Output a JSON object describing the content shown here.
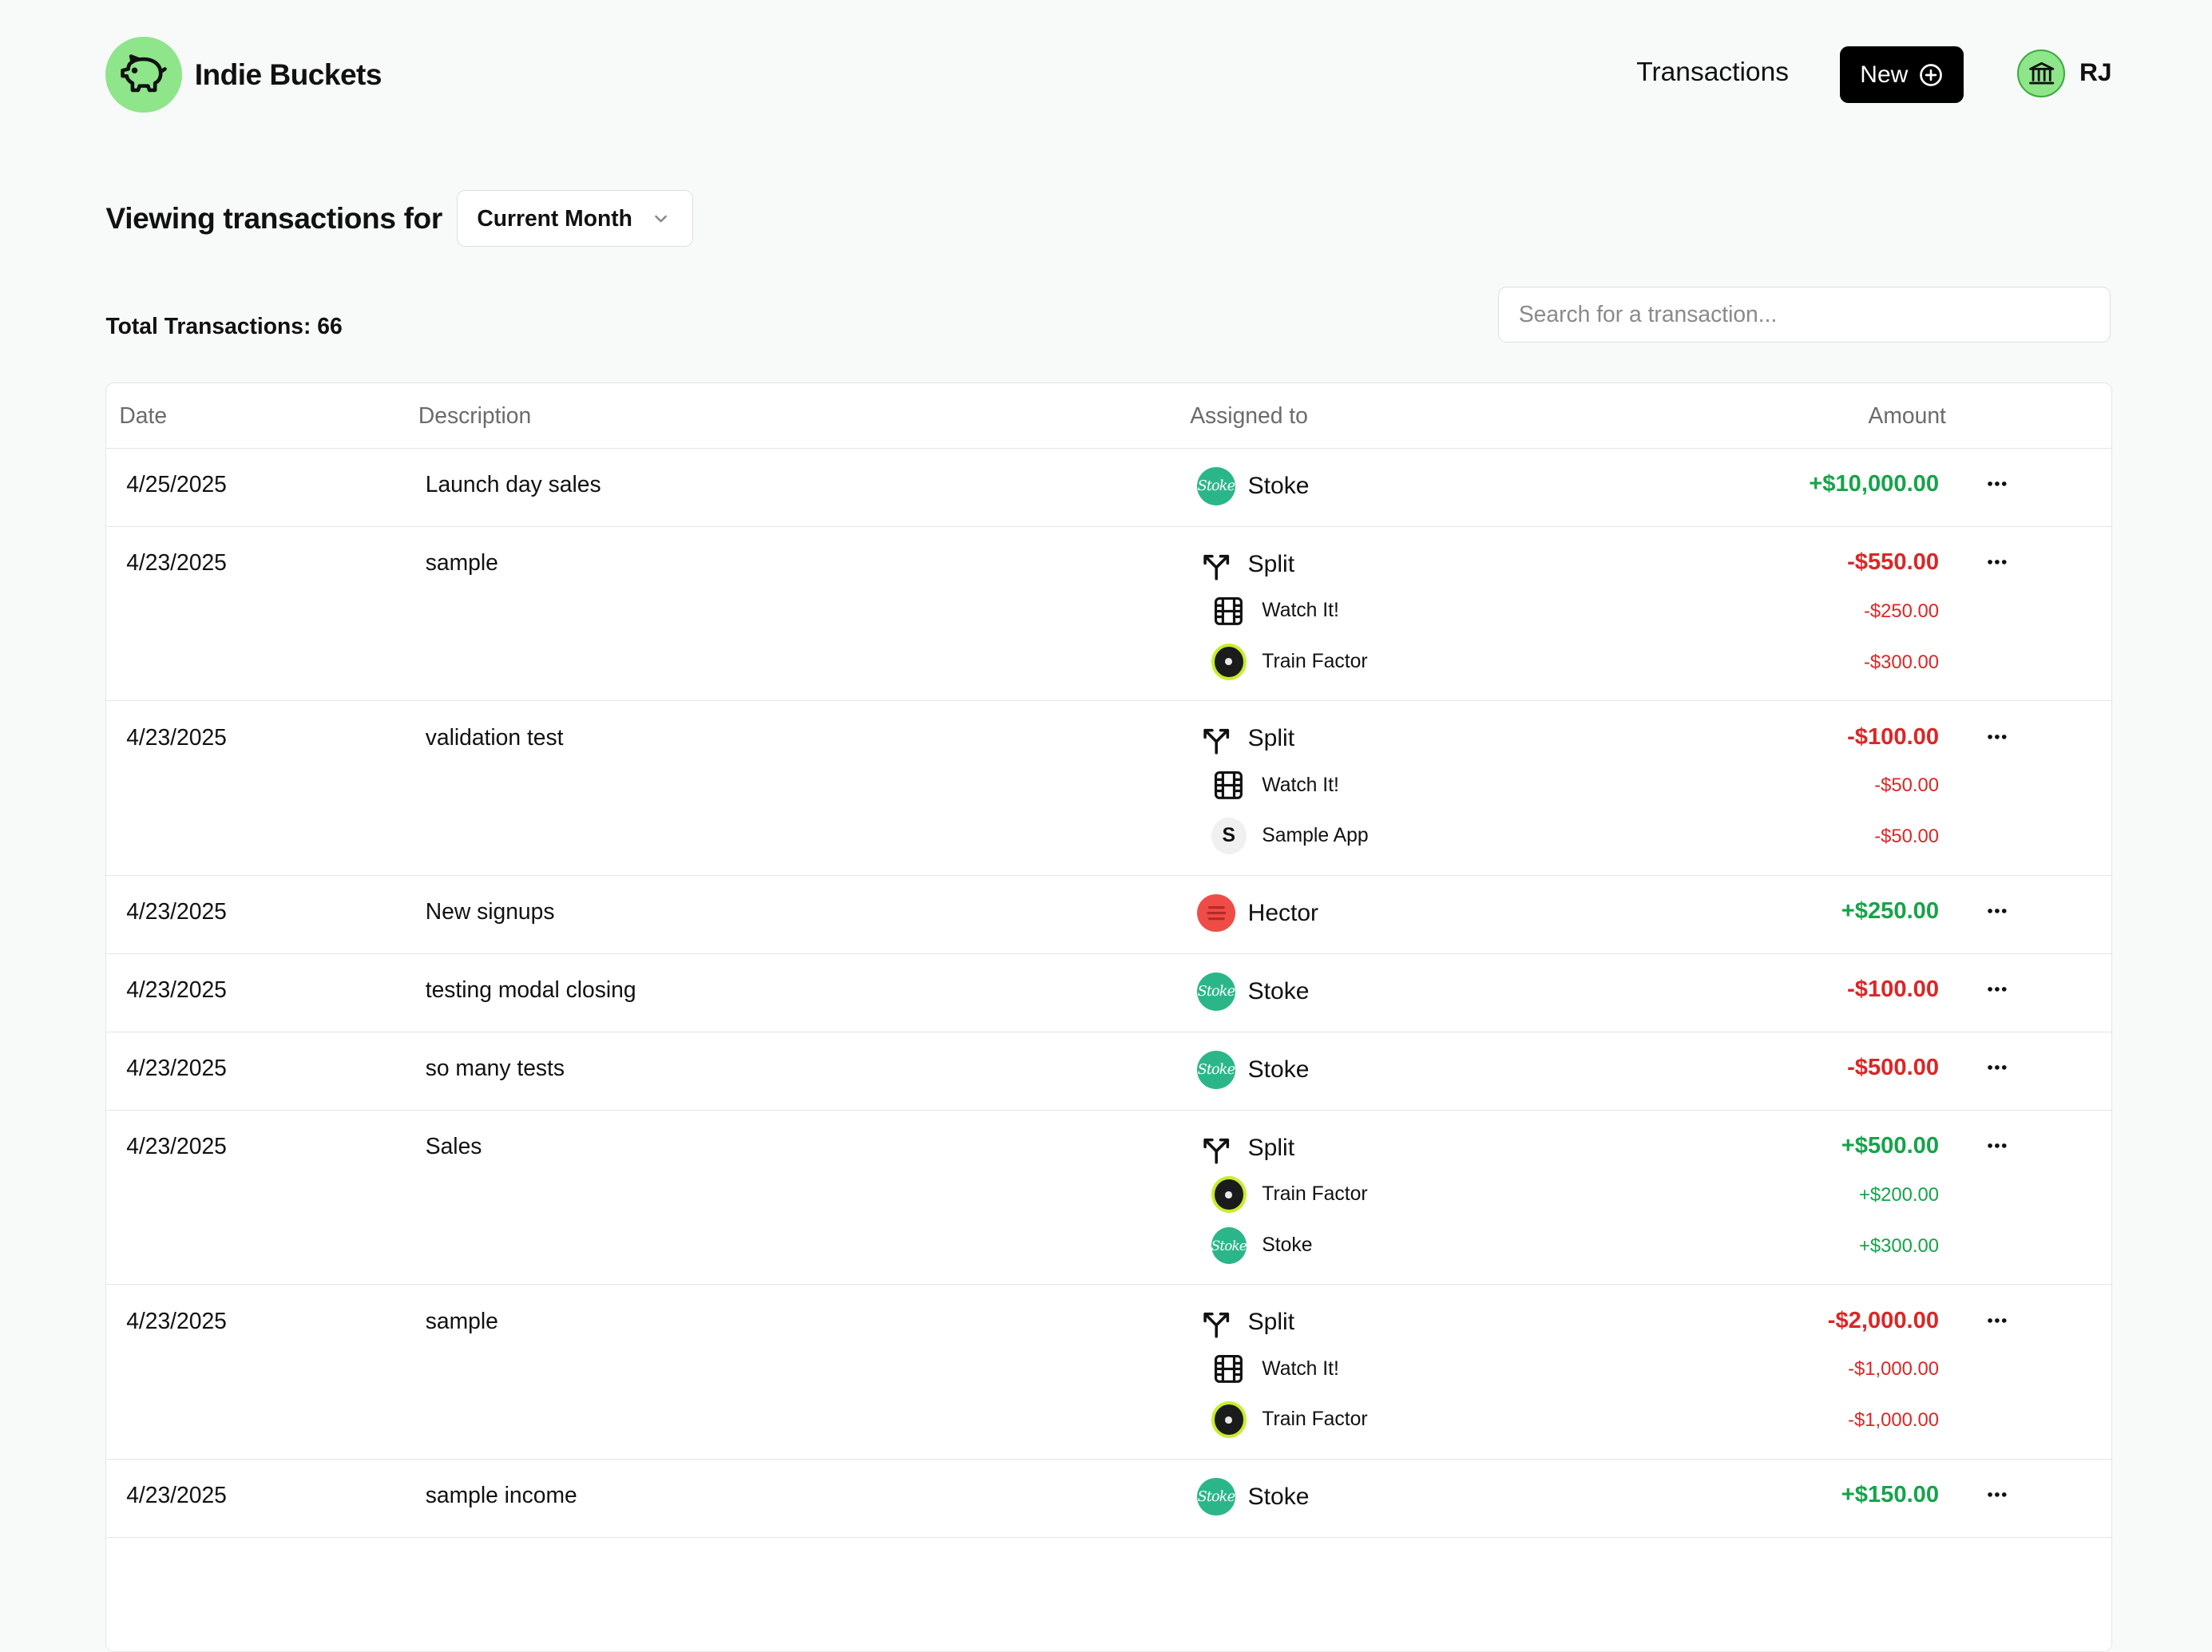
{
  "brand": {
    "name": "Indie Buckets"
  },
  "nav": {
    "transactions": "Transactions",
    "new_label": "New",
    "user_initials": "RJ"
  },
  "filter": {
    "label": "Viewing transactions for",
    "period": "Current Month"
  },
  "summary": {
    "total": "Total Transactions: 66"
  },
  "search": {
    "placeholder": "Search for a transaction..."
  },
  "table": {
    "headers": {
      "date": "Date",
      "description": "Description",
      "assigned": "Assigned to",
      "amount": "Amount"
    },
    "rows": [
      {
        "date": "4/25/2025",
        "description": "Launch day sales",
        "assignee": "Stoke",
        "amount": "+$10,000.00"
      },
      {
        "date": "4/23/2025",
        "description": "sample",
        "assignee": "Split",
        "amount": "-$550.00",
        "splits": [
          {
            "name": "Watch It!",
            "amount": "-$250.00"
          },
          {
            "name": "Train Factor",
            "amount": "-$300.00"
          }
        ]
      },
      {
        "date": "4/23/2025",
        "description": "validation test",
        "assignee": "Split",
        "amount": "-$100.00",
        "splits": [
          {
            "name": "Watch It!",
            "amount": "-$50.00"
          },
          {
            "name": "Sample App",
            "amount": "-$50.00"
          }
        ]
      },
      {
        "date": "4/23/2025",
        "description": "New signups",
        "assignee": "Hector",
        "amount": "+$250.00"
      },
      {
        "date": "4/23/2025",
        "description": "testing modal closing",
        "assignee": "Stoke",
        "amount": "-$100.00"
      },
      {
        "date": "4/23/2025",
        "description": "so many tests",
        "assignee": "Stoke",
        "amount": "-$500.00"
      },
      {
        "date": "4/23/2025",
        "description": "Sales",
        "assignee": "Split",
        "amount": "+$500.00",
        "splits": [
          {
            "name": "Train Factor",
            "amount": "+$200.00"
          },
          {
            "name": "Stoke",
            "amount": "+$300.00"
          }
        ]
      },
      {
        "date": "4/23/2025",
        "description": "sample",
        "assignee": "Split",
        "amount": "-$2,000.00",
        "splits": [
          {
            "name": "Watch It!",
            "amount": "-$1,000.00"
          },
          {
            "name": "Train Factor",
            "amount": "-$1,000.00"
          }
        ]
      },
      {
        "date": "4/23/2025",
        "description": "sample income",
        "assignee": "Stoke",
        "amount": "+$150.00"
      }
    ]
  },
  "icons": {
    "stoke_mark": "Stoke",
    "sample_mark": "S"
  },
  "colors": {
    "positive": "#16a34a",
    "negative": "#dc2626",
    "brand": "#8ee58a"
  }
}
